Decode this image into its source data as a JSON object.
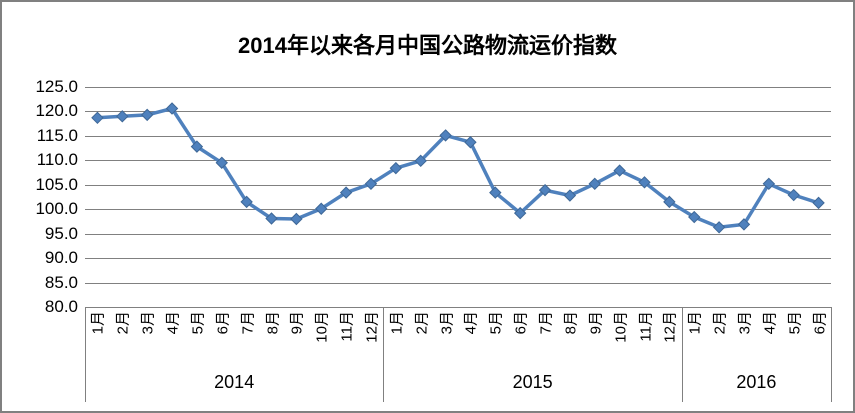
{
  "chart_data": {
    "type": "line",
    "title": "2014年以来各月中国公路物流运价指数",
    "categories": [
      "1月",
      "2月",
      "3月",
      "4月",
      "5月",
      "6月",
      "7月",
      "8月",
      "9月",
      "10月",
      "11月",
      "12月",
      "1月",
      "2月",
      "3月",
      "4月",
      "5月",
      "6月",
      "7月",
      "8月",
      "9月",
      "10月",
      "11月",
      "12月",
      "1月",
      "2月",
      "3月",
      "4月",
      "5月",
      "6月"
    ],
    "x_groups": [
      {
        "year": "2014",
        "month_count": 12
      },
      {
        "year": "2015",
        "month_count": 12
      },
      {
        "year": "2016",
        "month_count": 6
      }
    ],
    "values": [
      118.7,
      119.0,
      119.3,
      120.6,
      112.8,
      109.5,
      101.5,
      98.1,
      98.0,
      100.1,
      103.4,
      105.2,
      108.4,
      109.9,
      115.1,
      113.7,
      103.4,
      99.2,
      103.9,
      102.8,
      105.2,
      107.9,
      105.5,
      101.5,
      98.4,
      96.3,
      96.9,
      105.2,
      102.9,
      101.3
    ],
    "ylim": [
      80,
      125
    ],
    "y_tick_labels": [
      "125.0",
      "120.0",
      "115.0",
      "110.0",
      "105.0",
      "100.0",
      "95.0",
      "90.0",
      "85.0",
      "80.0"
    ],
    "grid": "horizontal",
    "legend": "none",
    "marker": "diamond",
    "colors": {
      "line": "#4F81BD",
      "marker_fill": "#4F81BD",
      "marker_edge": "#3E6796",
      "grid": "#808080",
      "axis": "#808080",
      "frame_border": "#808080",
      "text": "#000000"
    }
  }
}
